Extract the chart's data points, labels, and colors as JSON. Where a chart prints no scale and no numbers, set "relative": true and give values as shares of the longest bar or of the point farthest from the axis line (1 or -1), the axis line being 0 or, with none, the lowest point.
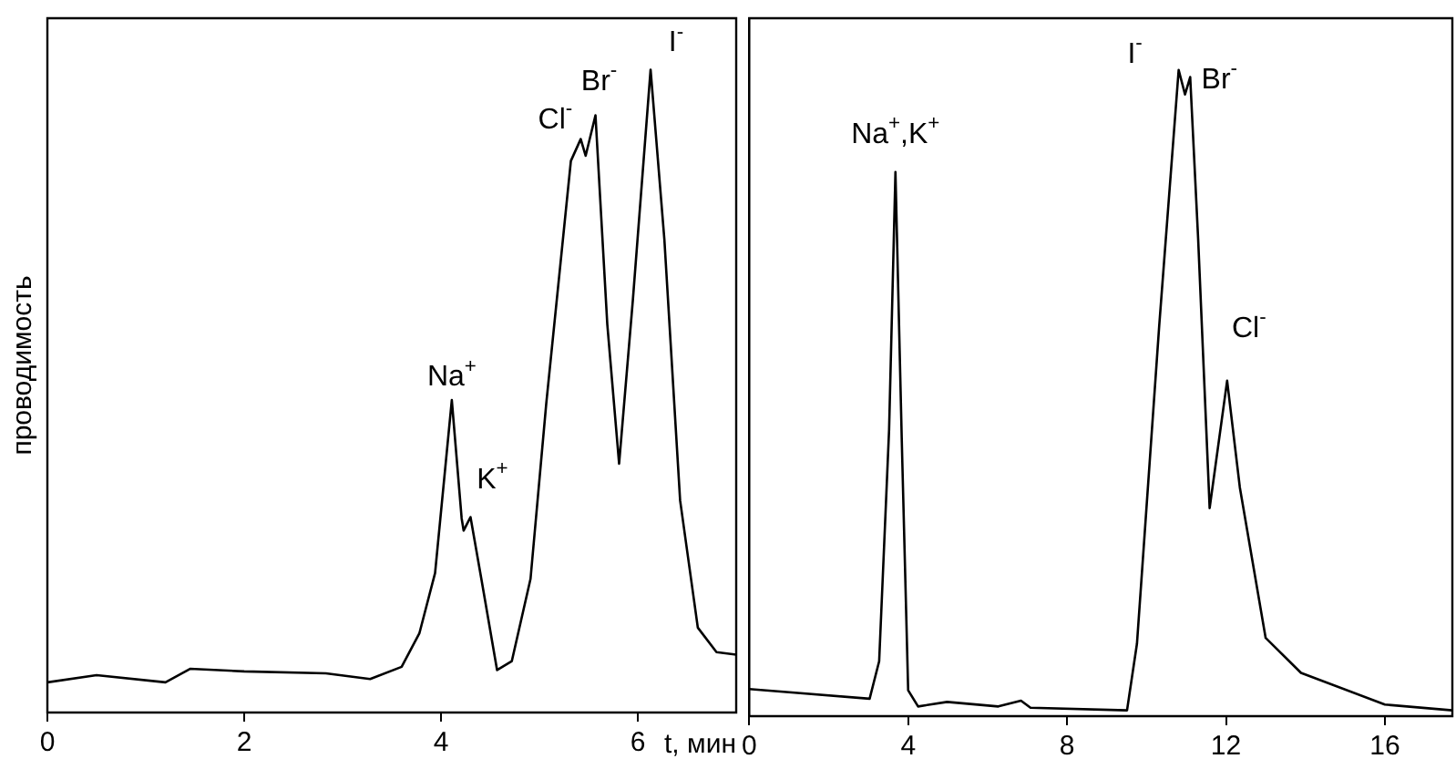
{
  "chart_data": [
    {
      "type": "line",
      "relative": true,
      "ylabel": "проводимость",
      "xlabel": "t, мин",
      "color": "#000000",
      "legend": false,
      "grid": false,
      "marker": "none",
      "line_style": "solid",
      "xlim": [
        0,
        7
      ],
      "xticks": [
        0,
        2,
        4,
        6
      ],
      "x": [
        0,
        0.5,
        1.2,
        1.45,
        2.0,
        2.83,
        3.28,
        3.6,
        3.78,
        3.94,
        4.11,
        4.21,
        4.23,
        4.3,
        4.41,
        4.57,
        4.72,
        4.91,
        5.07,
        5.32,
        5.42,
        5.47,
        5.57,
        5.69,
        5.81,
        5.95,
        6.13,
        6.27,
        6.43,
        6.61,
        6.8,
        7.0
      ],
      "values": [
        0.047,
        0.058,
        0.047,
        0.068,
        0.064,
        0.061,
        0.052,
        0.071,
        0.123,
        0.217,
        0.486,
        0.302,
        0.283,
        0.304,
        0.208,
        0.066,
        0.08,
        0.208,
        0.481,
        0.858,
        0.892,
        0.866,
        0.929,
        0.604,
        0.387,
        0.642,
        1,
        0.736,
        0.33,
        0.132,
        0.094,
        0.09
      ],
      "annotations": [
        {
          "text": "Na$^{+}$",
          "x": 4.11,
          "y": 0.486
        },
        {
          "text": "K$^{+}$",
          "x": 4.3,
          "y": 0.304
        },
        {
          "text": "Cl$^{-}$",
          "x": 5.42,
          "y": 0.892
        },
        {
          "text": "Br$^{-}$",
          "x": 5.57,
          "y": 0.929
        },
        {
          "text": "I$^{-}$",
          "x": 6.13,
          "y": 1
        }
      ]
    },
    {
      "type": "line",
      "relative": true,
      "color": "#000000",
      "legend": false,
      "grid": false,
      "marker": "none",
      "line_style": "solid",
      "xlim": [
        0,
        17.7
      ],
      "xticks": [
        0,
        4,
        8,
        12,
        16
      ],
      "x": [
        0,
        3.03,
        3.27,
        3.52,
        3.68,
        3.84,
        4.0,
        4.25,
        4.98,
        6.27,
        6.84,
        7.08,
        9.51,
        9.76,
        10.32,
        10.81,
        10.97,
        11.1,
        11.3,
        11.59,
        12.03,
        12.35,
        13.0,
        13.89,
        16.0,
        17.7
      ],
      "values": [
        0.042,
        0.027,
        0.085,
        0.443,
        0.842,
        0.425,
        0.04,
        0.015,
        0.022,
        0.015,
        0.024,
        0.013,
        0.009,
        0.112,
        0.604,
        1,
        0.962,
        0.989,
        0.739,
        0.322,
        0.519,
        0.354,
        0.121,
        0.067,
        0.018,
        0.009
      ],
      "annotations": [
        {
          "text": "Na$^{+}$,K$^{+}$",
          "x": 3.68,
          "y": 0.842
        },
        {
          "text": "I$^{-}$",
          "x": 10.81,
          "y": 1
        },
        {
          "text": "Br$^{-}$",
          "x": 11.1,
          "y": 0.989
        },
        {
          "text": "Cl$^{-}$",
          "x": 12.03,
          "y": 0.519
        }
      ]
    }
  ]
}
